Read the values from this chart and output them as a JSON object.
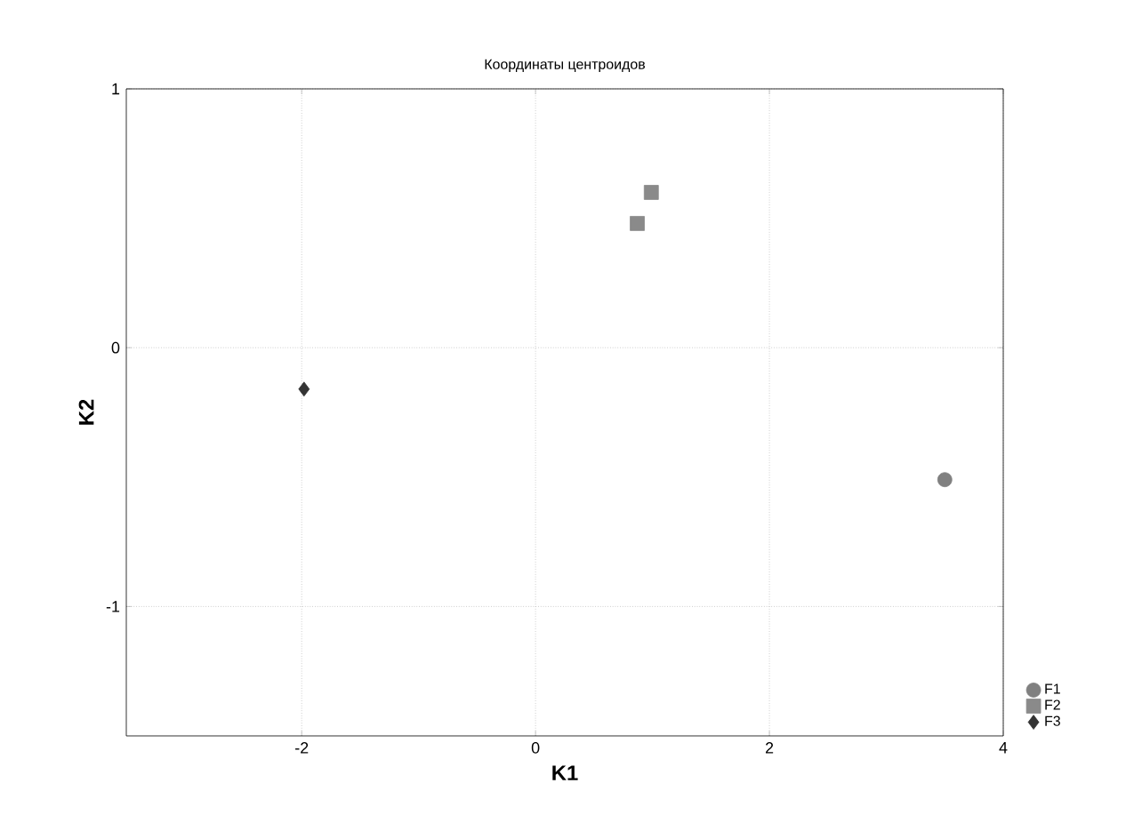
{
  "chart_data": {
    "type": "scatter",
    "title": "Координаты центроидов",
    "xlabel": "K1",
    "ylabel": "K2",
    "xlim": [
      -3.5,
      4
    ],
    "ylim": [
      -1.5,
      1
    ],
    "xticks": [
      -2,
      0,
      2,
      4
    ],
    "yticks": [
      -1,
      0,
      1
    ],
    "grid": true,
    "legend": "bottom right",
    "series": [
      {
        "name": "F1",
        "color": "#808080",
        "marker": "circle",
        "x": [
          3.5
        ],
        "values": [
          -0.51
        ]
      },
      {
        "name": "F2",
        "color": "#8a8a8a",
        "marker": "square",
        "x": [
          0.99,
          0.87
        ],
        "values": [
          0.6,
          0.48
        ]
      },
      {
        "name": "F3",
        "color": "#333333",
        "marker": "diamond",
        "x": [
          -1.98
        ],
        "values": [
          -0.16
        ]
      }
    ]
  }
}
